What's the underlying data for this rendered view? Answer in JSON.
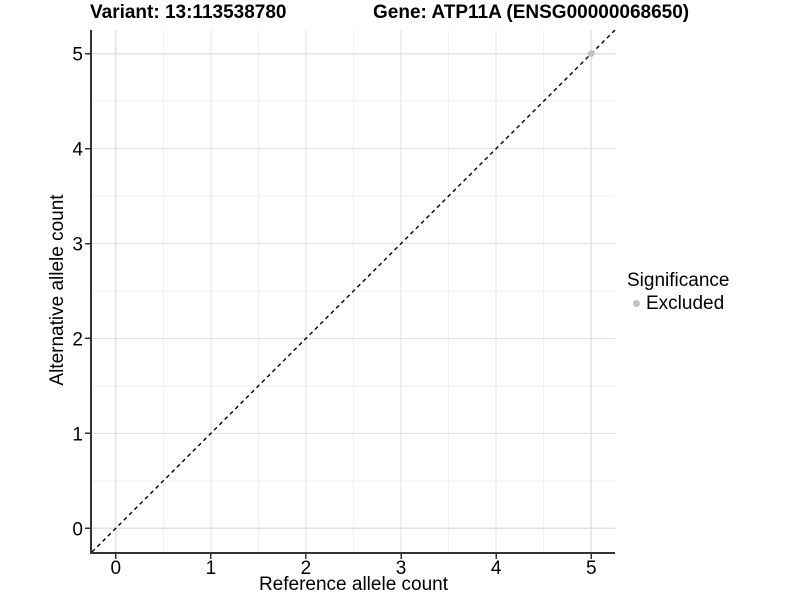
{
  "chart_data": {
    "type": "scatter",
    "titles": {
      "left": "Variant: 13:113538780",
      "right": "Gene: ATP11A (ENSG00000068650)"
    },
    "xlabel": "Reference allele count",
    "ylabel": "Alternative allele count",
    "x_ticks": [
      0,
      1,
      2,
      3,
      4,
      5
    ],
    "y_ticks": [
      0,
      1,
      2,
      3,
      4,
      5
    ],
    "xlim": [
      -0.25,
      5.25
    ],
    "ylim": [
      -0.25,
      5.25
    ],
    "grid": {
      "major": true,
      "minor": true
    },
    "reference_line": {
      "type": "identity",
      "slope": 1,
      "intercept": 0,
      "style": "dashed",
      "color": "#000000"
    },
    "series": [
      {
        "name": "Excluded",
        "color": "#c1c1c1",
        "points": [
          [
            5,
            5
          ]
        ]
      }
    ],
    "legend": {
      "title": "Significance",
      "position": "right",
      "entries": [
        {
          "label": "Excluded",
          "color": "#c1c1c1"
        }
      ]
    }
  },
  "colors": {
    "background": "#ffffff",
    "grid_major": "#e2e2e2",
    "grid_minor": "#f0f0f0",
    "axis_line": "#333333",
    "tick_mark": "#333333",
    "text": "#000000"
  }
}
